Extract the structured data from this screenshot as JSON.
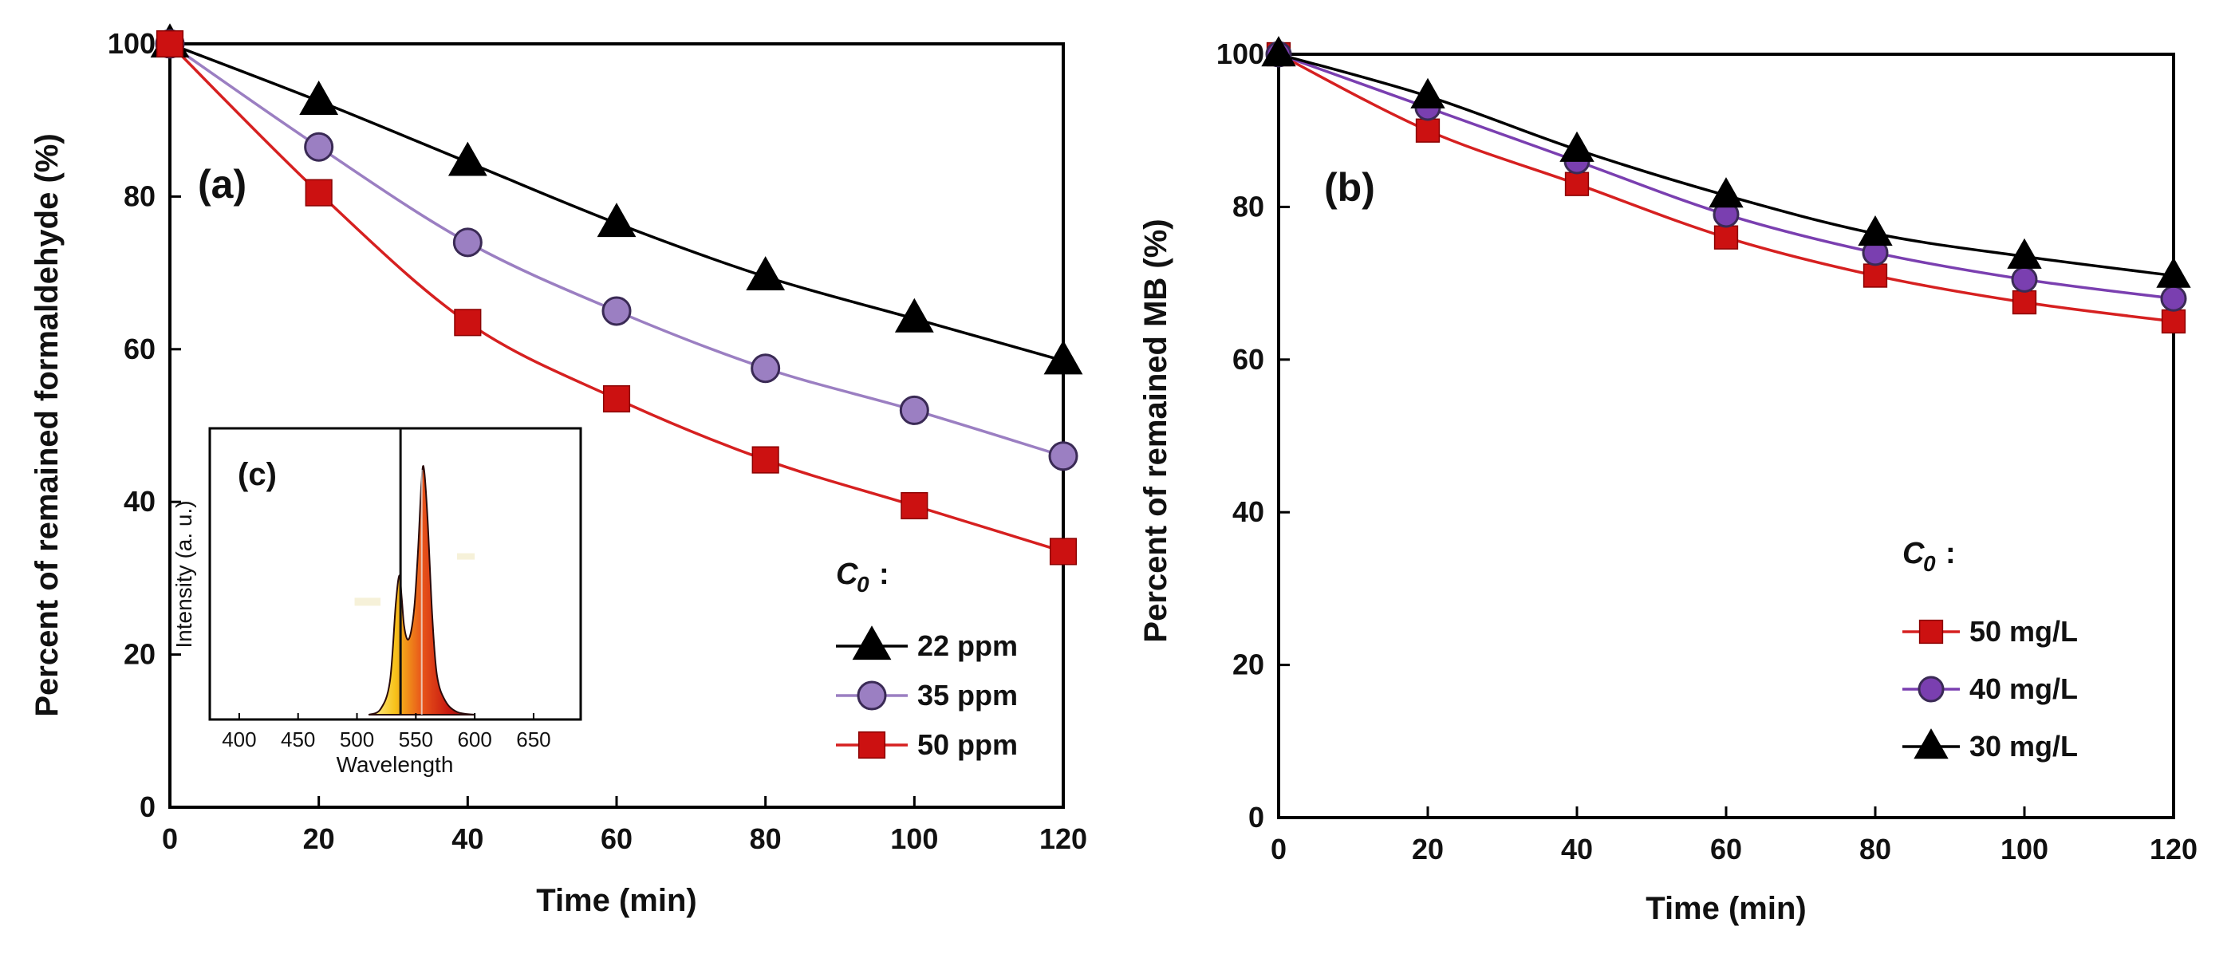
{
  "chart_data": [
    {
      "id": "a",
      "type": "line",
      "panel_label": "(a)",
      "xlabel": "Time (min)",
      "ylabel": "Percent of remained formaldehyde  (%)",
      "xlim": [
        0,
        120
      ],
      "ylim": [
        0,
        100
      ],
      "xticks": [
        "0",
        "20",
        "40",
        "60",
        "80",
        "100",
        "120"
      ],
      "yticks": [
        "0",
        "20",
        "40",
        "60",
        "80",
        "100"
      ],
      "legend": {
        "title": "C",
        "title_sub": "0",
        "title_suffix": ":",
        "placement": "lower-right"
      },
      "series": [
        {
          "name": "22 ppm",
          "marker": "triangle",
          "color": "#000000",
          "marker_fill": "#000000",
          "x": [
            0,
            20,
            40,
            60,
            80,
            100,
            120
          ],
          "y": [
            100,
            92.5,
            84.5,
            76.5,
            69.5,
            64,
            58.5
          ]
        },
        {
          "name": "35 ppm",
          "marker": "circle",
          "color": "#9b7fc2",
          "marker_fill": "#9b7fc2",
          "x": [
            0,
            20,
            40,
            60,
            80,
            100,
            120
          ],
          "y": [
            100,
            86.5,
            74,
            65,
            57.5,
            52,
            46
          ]
        },
        {
          "name": "50 ppm",
          "marker": "square",
          "color": "#d62020",
          "marker_fill": "#cc1111",
          "x": [
            0,
            20,
            40,
            60,
            80,
            100,
            120
          ],
          "y": [
            100,
            80.5,
            63.5,
            53.5,
            45.5,
            39.5,
            33.5
          ]
        }
      ]
    },
    {
      "id": "b",
      "type": "line",
      "panel_label": "(b)",
      "xlabel": "Time (min)",
      "ylabel": "Percent of remained MB  (%)",
      "xlim": [
        0,
        120
      ],
      "ylim": [
        0,
        100
      ],
      "xticks": [
        "0",
        "20",
        "40",
        "60",
        "80",
        "100",
        "120"
      ],
      "yticks": [
        "0",
        "20",
        "40",
        "60",
        "80",
        "100"
      ],
      "legend": {
        "title": "C",
        "title_sub": "0",
        "title_suffix": ":",
        "placement": "lower-right"
      },
      "series": [
        {
          "name": "50 mg/L",
          "marker": "square",
          "color": "#d62020",
          "marker_fill": "#cc1111",
          "x": [
            0,
            20,
            40,
            60,
            80,
            100,
            120
          ],
          "y": [
            100,
            90,
            83,
            76,
            71,
            67.5,
            65
          ]
        },
        {
          "name": "40 mg/L",
          "marker": "circle",
          "color": "#7a3fb0",
          "marker_fill": "#7a3fb0",
          "x": [
            0,
            20,
            40,
            60,
            80,
            100,
            120
          ],
          "y": [
            100,
            93,
            86,
            79,
            74,
            70.5,
            68
          ]
        },
        {
          "name": "30 mg/L",
          "marker": "triangle",
          "color": "#000000",
          "marker_fill": "#000000",
          "x": [
            0,
            20,
            40,
            60,
            80,
            100,
            120
          ],
          "y": [
            100,
            94.5,
            87.5,
            81.5,
            76.5,
            73.5,
            71
          ]
        }
      ]
    },
    {
      "id": "c",
      "type": "area",
      "panel_label": "(c)",
      "xlabel": "Wavelength",
      "ylabel": "Intensity (a. u.)",
      "xlim": [
        375,
        690
      ],
      "ylim": [
        0,
        1
      ],
      "xticks": [
        "400",
        "450",
        "500",
        "550",
        "600",
        "650"
      ],
      "series": [
        {
          "name": "emission spectrum",
          "color": "#cc2200",
          "x": [
            510,
            520,
            528,
            533,
            536,
            538,
            540,
            543,
            546,
            549,
            552,
            555,
            557,
            560,
            564,
            568,
            575,
            585,
            600
          ],
          "y": [
            0.0,
            0.02,
            0.12,
            0.4,
            0.5,
            0.42,
            0.32,
            0.27,
            0.3,
            0.4,
            0.6,
            0.85,
            0.88,
            0.7,
            0.35,
            0.14,
            0.05,
            0.01,
            0.0
          ]
        },
        {
          "name": "sharp line",
          "color": "#111111",
          "x": [
            537
          ],
          "y": [
            1.0
          ]
        }
      ]
    }
  ]
}
